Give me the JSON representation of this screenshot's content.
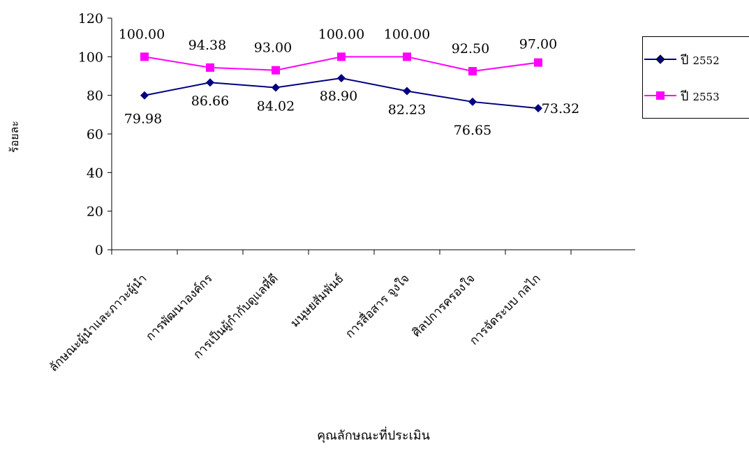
{
  "chart_data": {
    "type": "line",
    "title": "",
    "xlabel": "คุณลักษณะที่ประเมิน",
    "ylabel": "ร้อยละ",
    "ylim": [
      0,
      120
    ],
    "yticks": [
      "0",
      "20",
      "40",
      "60",
      "80",
      "100",
      "120"
    ],
    "categories": [
      "ลักษณะผู้นำและภาวะผู้นำ",
      "การพัฒนาองค์กร",
      "การเป็นผู้กำกับดูแลที่ดี",
      "มนุษยสัมพันธ์",
      "การสื่อสาร จูงใจ",
      "ศิลปการครองใจ",
      "การจัดระบบ กลไก"
    ],
    "series": [
      {
        "name": "ปี 2552",
        "prefix": "ปี",
        "year": "2552",
        "color": "#000080",
        "marker": "diamond",
        "values": [
          79.98,
          86.66,
          84.02,
          88.9,
          82.23,
          76.65,
          73.32
        ],
        "labels": [
          "79.98",
          "86.66",
          "84.02",
          "88.90",
          "82.23",
          "76.65",
          "73.32"
        ]
      },
      {
        "name": "ปี 2553",
        "prefix": "ปี",
        "year": "2553",
        "color": "#ff00ff",
        "marker": "square",
        "values": [
          100.0,
          94.38,
          93.0,
          100.0,
          100.0,
          92.5,
          97.0
        ],
        "labels": [
          "100.00",
          "94.38",
          "93.00",
          "100.00",
          "100.00",
          "92.50",
          "97.00"
        ]
      }
    ],
    "grid": false,
    "legend": "right"
  }
}
